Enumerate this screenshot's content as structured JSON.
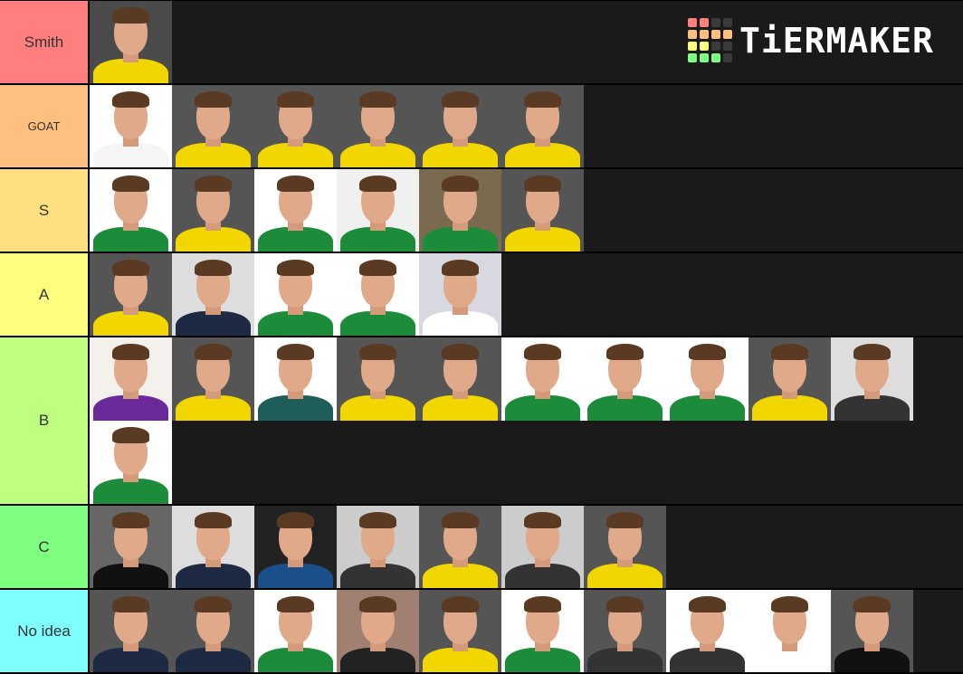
{
  "brand": {
    "name": "TiERMAKER",
    "grid_colors": [
      "#ff7f7f",
      "#ff7f7f",
      "#3a3a3a",
      "#3a3a3a",
      "#ffbf7f",
      "#ffbf7f",
      "#ffbf7f",
      "#ffbf7f",
      "#ffff7f",
      "#ffff7f",
      "#3a3a3a",
      "#3a3a3a",
      "#7fff7f",
      "#7fff7f",
      "#7fff7f",
      "#3a3a3a"
    ]
  },
  "tiers": [
    {
      "label": "Smith",
      "color": "#ff7f7f",
      "items": [
        [
          "#4a4a4a",
          "#f2d600"
        ]
      ]
    },
    {
      "label": "GOAT",
      "color": "#ffbf7f",
      "small": true,
      "items": [
        [
          "#ffffff",
          "#f5f5f5"
        ],
        [
          "#555555",
          "#f2d600"
        ],
        [
          "#555555",
          "#f2d600"
        ],
        [
          "#555555",
          "#f2d600"
        ],
        [
          "#555555",
          "#f2d600"
        ],
        [
          "#555555",
          "#f2d600"
        ]
      ]
    },
    {
      "label": "S",
      "color": "#ffdf7f",
      "items": [
        [
          "#ffffff",
          "#1d8c3a"
        ],
        [
          "#555555",
          "#f2d600"
        ],
        [
          "#ffffff",
          "#1d8c3a"
        ],
        [
          "#f0f0f0",
          "#1d8c3a"
        ],
        [
          "#7a6a50",
          "#1d8c3a"
        ],
        [
          "#555555",
          "#f2d600"
        ]
      ]
    },
    {
      "label": "A",
      "color": "#ffff7f",
      "items": [
        [
          "#555555",
          "#f2d600"
        ],
        [
          "#dddddd",
          "#1e2a44"
        ],
        [
          "#ffffff",
          "#1d8c3a"
        ],
        [
          "#ffffff",
          "#1d8c3a"
        ],
        [
          "#d8d8e0",
          "#ffffff"
        ]
      ]
    },
    {
      "label": "B",
      "color": "#bfff7f",
      "cls": "b",
      "items": [
        [
          "#f4f0ec",
          "#6a2a9a"
        ],
        [
          "#555555",
          "#f2d600"
        ],
        [
          "#ffffff",
          "#1f5e58"
        ],
        [
          "#555555",
          "#f2d600"
        ],
        [
          "#555555",
          "#f2d600"
        ],
        [
          "#ffffff",
          "#1d8c3a"
        ],
        [
          "#ffffff",
          "#1d8c3a"
        ],
        [
          "#ffffff",
          "#1d8c3a"
        ],
        [
          "#555555",
          "#f2d600"
        ],
        [
          "#dddddd",
          "#333333"
        ],
        [
          "#ffffff",
          "#1d8c3a"
        ]
      ]
    },
    {
      "label": "C",
      "color": "#7fff7f",
      "items": [
        [
          "#666666",
          "#111111"
        ],
        [
          "#dddddd",
          "#1e2a44"
        ],
        [
          "#222222",
          "#1a4f8a"
        ],
        [
          "#cccccc",
          "#333333"
        ],
        [
          "#555555",
          "#f2d600"
        ],
        [
          "#cccccc",
          "#333333"
        ],
        [
          "#555555",
          "#f2d600"
        ]
      ]
    },
    {
      "label": "No idea",
      "color": "#7fffff",
      "items": [
        [
          "#555555",
          "#1e2a44"
        ],
        [
          "#555555",
          "#1e2a44"
        ],
        [
          "#ffffff",
          "#1d8c3a"
        ],
        [
          "#a08070",
          "#222222"
        ],
        [
          "#555555",
          "#f2d600"
        ],
        [
          "#ffffff",
          "#1d8c3a"
        ],
        [
          "#555555",
          "#333333"
        ],
        [
          "#ffffff",
          "#333333"
        ],
        [
          "#ffffff",
          "#ffffff"
        ],
        [
          "#555555",
          "#111111"
        ]
      ]
    }
  ]
}
